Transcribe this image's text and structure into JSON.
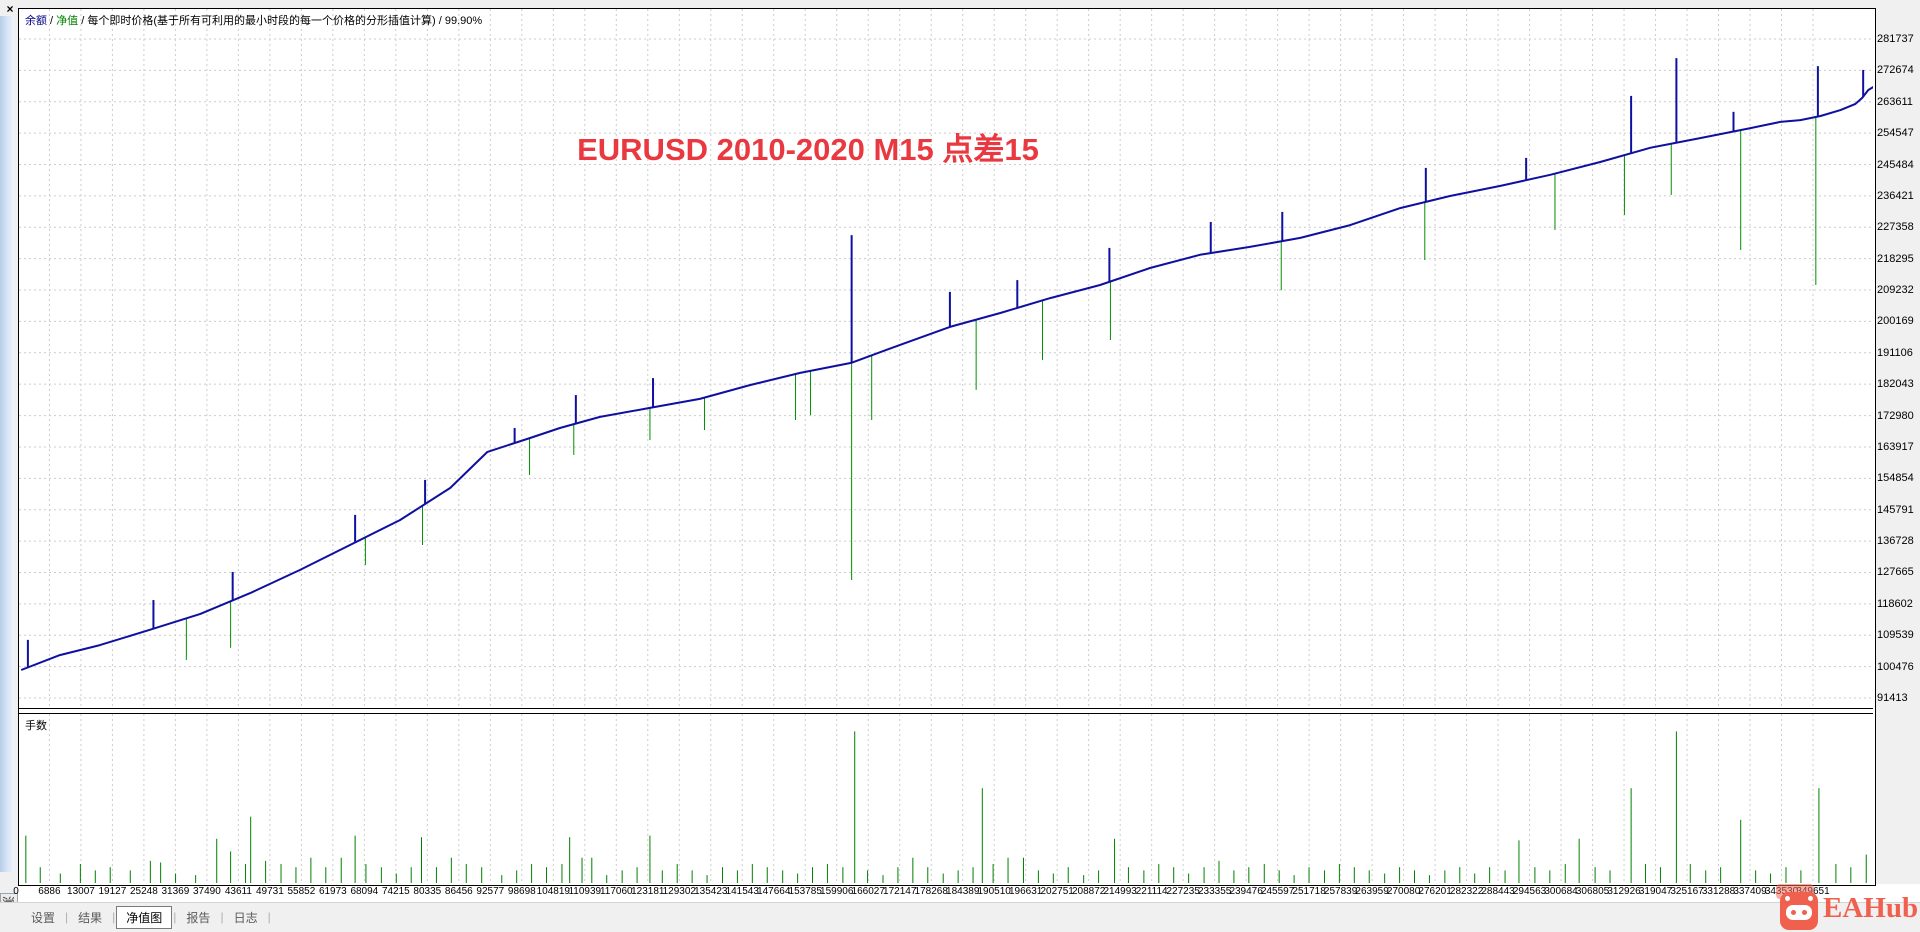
{
  "window": {
    "close_label": "×",
    "side_tab_label": "测试"
  },
  "legend": {
    "balance": "余额",
    "equity": "净值",
    "separator": " / ",
    "description": "每个即时价格(基于所有可利用的最小时段的每一个价格的分形插值计算)",
    "quality": "99.90%"
  },
  "title": {
    "text": "EURUSD 2010-2020 M15 点差15",
    "color": "#e9383f"
  },
  "panels": {
    "volume_label": "手数"
  },
  "tabs": [
    {
      "label": "设置",
      "selected": false
    },
    {
      "label": "结果",
      "selected": false
    },
    {
      "label": "净值图",
      "selected": true
    },
    {
      "label": "报告",
      "selected": false
    },
    {
      "label": "日志",
      "selected": false
    }
  ],
  "watermark": {
    "text": "EAHub",
    "color": "#ef614e"
  },
  "colors": {
    "balance_line": "#0f0fa0",
    "equity_spike": "#009000",
    "volume_bar": "#008000",
    "grid": "#cccccc",
    "title_red": "#e9383f"
  },
  "chart_data": {
    "type": "line",
    "title": "EURUSD 2010-2020 M15 点差15",
    "legend_text": "余额 / 净值 / 每个即时价格(基于所有可利用的最小时段的每一个价格的分形插值计算) / 99.90%",
    "x_axis": {
      "min": 0,
      "max": 361400,
      "ticks": [
        0,
        6886,
        13007,
        19127,
        25248,
        31369,
        37490,
        43611,
        49731,
        55852,
        61973,
        68094,
        74215,
        80335,
        86456,
        92577,
        98698,
        104819,
        110939,
        117060,
        123181,
        129302,
        135423,
        141543,
        147664,
        153785,
        159906,
        166027,
        172147,
        178268,
        184389,
        190510,
        196631,
        202751,
        208872,
        214993,
        221114,
        227235,
        233355,
        239476,
        245597,
        251718,
        257839,
        263959,
        270080,
        276201,
        282322,
        288443,
        294563,
        300684,
        306805,
        312926,
        319047,
        325167,
        331288,
        337409,
        343530,
        349651
      ]
    },
    "y_axis": {
      "min": 88400,
      "max": 284500,
      "ticks": [
        91413,
        100476,
        109539,
        118602,
        127665,
        136728,
        145791,
        154854,
        163917,
        172980,
        182043,
        191106,
        200169,
        209232,
        218295,
        227358,
        236421,
        245484,
        254547,
        263611,
        272674,
        281737
      ]
    },
    "series": [
      {
        "name": "余额",
        "color": "#0f0fa0",
        "points": [
          [
            1400,
            99500
          ],
          [
            8900,
            103800
          ],
          [
            16700,
            106700
          ],
          [
            26400,
            111100
          ],
          [
            36200,
            115700
          ],
          [
            45900,
            121700
          ],
          [
            55600,
            128400
          ],
          [
            65300,
            135600
          ],
          [
            75000,
            142800
          ],
          [
            84800,
            152100
          ],
          [
            92000,
            162500
          ],
          [
            100300,
            166500
          ],
          [
            106100,
            169400
          ],
          [
            113900,
            172600
          ],
          [
            123600,
            175200
          ],
          [
            133300,
            177800
          ],
          [
            143100,
            181800
          ],
          [
            152800,
            185300
          ],
          [
            162700,
            188200
          ],
          [
            172200,
            193400
          ],
          [
            181900,
            198600
          ],
          [
            191700,
            202600
          ],
          [
            201400,
            206900
          ],
          [
            211100,
            210700
          ],
          [
            220800,
            215600
          ],
          [
            230500,
            219400
          ],
          [
            240200,
            221700
          ],
          [
            250000,
            224300
          ],
          [
            259700,
            228000
          ],
          [
            269400,
            232900
          ],
          [
            279100,
            236400
          ],
          [
            288900,
            239300
          ],
          [
            298600,
            242500
          ],
          [
            308300,
            246200
          ],
          [
            318000,
            250300
          ],
          [
            327700,
            253100
          ],
          [
            337500,
            256000
          ],
          [
            343300,
            257800
          ],
          [
            347200,
            258300
          ],
          [
            351100,
            259500
          ],
          [
            355000,
            261200
          ],
          [
            357900,
            263000
          ],
          [
            359200,
            264700
          ],
          [
            360400,
            267000
          ],
          [
            361400,
            267900
          ]
        ]
      },
      {
        "name": "净值",
        "color": "#009000",
        "drawdown_spikes": [
          [
            33500,
            102400
          ],
          [
            42100,
            105900
          ],
          [
            68300,
            129800
          ],
          [
            79400,
            135600
          ],
          [
            100200,
            155800
          ],
          [
            108800,
            161600
          ],
          [
            123600,
            165900
          ],
          [
            134200,
            168800
          ],
          [
            151900,
            171700
          ],
          [
            154800,
            173100
          ],
          [
            162800,
            125500
          ],
          [
            166700,
            171700
          ],
          [
            187000,
            180400
          ],
          [
            199900,
            189000
          ],
          [
            213100,
            194800
          ],
          [
            246300,
            209200
          ],
          [
            274200,
            217900
          ],
          [
            299500,
            226600
          ],
          [
            313000,
            230900
          ],
          [
            322100,
            236700
          ],
          [
            335600,
            220800
          ],
          [
            350200,
            210700
          ]
        ]
      }
    ],
    "balance_jump_spikes": [
      [
        2700,
        108200
      ],
      [
        27100,
        119700
      ],
      [
        42500,
        127800
      ],
      [
        66300,
        144300
      ],
      [
        79900,
        154400
      ],
      [
        97300,
        169400
      ],
      [
        109200,
        178900
      ],
      [
        124200,
        183800
      ],
      [
        162800,
        225100
      ],
      [
        181900,
        208700
      ],
      [
        195000,
        212100
      ],
      [
        212900,
        221400
      ],
      [
        232600,
        228900
      ],
      [
        246500,
        231800
      ],
      [
        274400,
        244500
      ],
      [
        293900,
        247400
      ],
      [
        314300,
        265300
      ],
      [
        323100,
        276200
      ],
      [
        334200,
        260700
      ],
      [
        350600,
        273900
      ],
      [
        359400,
        272800
      ]
    ],
    "volume_panel": {
      "label": "手数",
      "bars": [
        [
          2300,
          0.3
        ],
        [
          5100,
          0.1
        ],
        [
          9000,
          0.06
        ],
        [
          12900,
          0.12
        ],
        [
          15800,
          0.08
        ],
        [
          18700,
          0.1
        ],
        [
          22600,
          0.08
        ],
        [
          26500,
          0.14
        ],
        [
          28500,
          0.13
        ],
        [
          31400,
          0.06
        ],
        [
          35300,
          0.05
        ],
        [
          39400,
          0.28
        ],
        [
          42100,
          0.2
        ],
        [
          45000,
          0.12
        ],
        [
          46000,
          0.42
        ],
        [
          48900,
          0.14
        ],
        [
          51900,
          0.12
        ],
        [
          54800,
          0.1
        ],
        [
          57700,
          0.16
        ],
        [
          60600,
          0.1
        ],
        [
          63600,
          0.16
        ],
        [
          66300,
          0.3
        ],
        [
          68400,
          0.12
        ],
        [
          71400,
          0.1
        ],
        [
          74300,
          0.06
        ],
        [
          77200,
          0.1
        ],
        [
          79200,
          0.29
        ],
        [
          82100,
          0.1
        ],
        [
          85000,
          0.16
        ],
        [
          87900,
          0.12
        ],
        [
          90900,
          0.1
        ],
        [
          94800,
          0.05
        ],
        [
          97700,
          0.08
        ],
        [
          100600,
          0.12
        ],
        [
          103500,
          0.1
        ],
        [
          106500,
          0.12
        ],
        [
          108000,
          0.29
        ],
        [
          110400,
          0.16
        ],
        [
          112300,
          0.16
        ],
        [
          115200,
          0.05
        ],
        [
          118200,
          0.08
        ],
        [
          121100,
          0.1
        ],
        [
          123600,
          0.3
        ],
        [
          126000,
          0.08
        ],
        [
          128900,
          0.12
        ],
        [
          131800,
          0.08
        ],
        [
          134700,
          0.05
        ],
        [
          137700,
          0.1
        ],
        [
          140600,
          0.08
        ],
        [
          143500,
          0.12
        ],
        [
          146400,
          0.1
        ],
        [
          149400,
          0.08
        ],
        [
          152300,
          0.06
        ],
        [
          155200,
          0.1
        ],
        [
          158100,
          0.12
        ],
        [
          161100,
          0.1
        ],
        [
          163400,
          0.96
        ],
        [
          165900,
          0.08
        ],
        [
          168900,
          0.05
        ],
        [
          171800,
          0.1
        ],
        [
          174700,
          0.16
        ],
        [
          177600,
          0.1
        ],
        [
          180600,
          0.06
        ],
        [
          183500,
          0.08
        ],
        [
          186400,
          0.1
        ],
        [
          188200,
          0.6
        ],
        [
          190300,
          0.12
        ],
        [
          193200,
          0.16
        ],
        [
          196200,
          0.16
        ],
        [
          199100,
          0.08
        ],
        [
          202000,
          0.06
        ],
        [
          204900,
          0.1
        ],
        [
          207900,
          0.05
        ],
        [
          210800,
          0.08
        ],
        [
          213900,
          0.28
        ],
        [
          216600,
          0.1
        ],
        [
          219600,
          0.08
        ],
        [
          222500,
          0.12
        ],
        [
          225400,
          0.1
        ],
        [
          228300,
          0.06
        ],
        [
          231300,
          0.1
        ],
        [
          234200,
          0.14
        ],
        [
          237100,
          0.08
        ],
        [
          240000,
          0.1
        ],
        [
          243000,
          0.12
        ],
        [
          245900,
          0.08
        ],
        [
          248800,
          0.05
        ],
        [
          251700,
          0.1
        ],
        [
          254700,
          0.08
        ],
        [
          257600,
          0.12
        ],
        [
          260500,
          0.1
        ],
        [
          263400,
          0.08
        ],
        [
          266400,
          0.06
        ],
        [
          269300,
          0.1
        ],
        [
          272200,
          0.08
        ],
        [
          275100,
          0.05
        ],
        [
          278100,
          0.08
        ],
        [
          281000,
          0.1
        ],
        [
          283900,
          0.06
        ],
        [
          286800,
          0.1
        ],
        [
          289800,
          0.08
        ],
        [
          292500,
          0.27
        ],
        [
          295600,
          0.1
        ],
        [
          298500,
          0.08
        ],
        [
          301500,
          0.12
        ],
        [
          304200,
          0.28
        ],
        [
          307300,
          0.1
        ],
        [
          310200,
          0.08
        ],
        [
          314300,
          0.6
        ],
        [
          317100,
          0.12
        ],
        [
          320000,
          0.1
        ],
        [
          323100,
          0.96
        ],
        [
          325800,
          0.12
        ],
        [
          328800,
          0.08
        ],
        [
          331700,
          0.1
        ],
        [
          335600,
          0.4
        ],
        [
          338500,
          0.08
        ],
        [
          341400,
          0.06
        ],
        [
          344400,
          0.1
        ],
        [
          347300,
          0.08
        ],
        [
          350800,
          0.6
        ],
        [
          354100,
          0.12
        ],
        [
          357000,
          0.1
        ],
        [
          360000,
          0.18
        ]
      ]
    }
  }
}
